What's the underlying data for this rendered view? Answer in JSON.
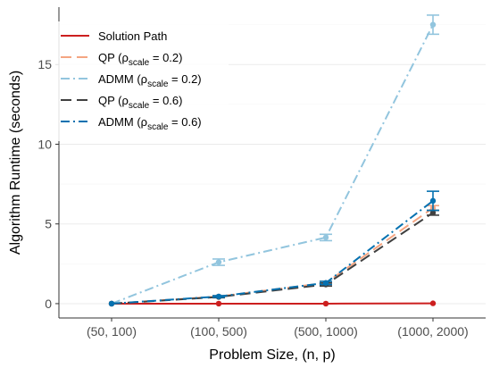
{
  "chart_data": {
    "type": "line",
    "title": "",
    "xlabel": "Problem Size, (n, p)",
    "ylabel": "Algorithm Runtime (seconds)",
    "categories": [
      "(50, 100)",
      "(100, 500)",
      "(500, 1000)",
      "(1000, 2000)"
    ],
    "ylim": [
      -0.9,
      18.6
    ],
    "yticks": [
      0,
      5,
      10,
      15
    ],
    "grid": "horizontal",
    "legend_position": "top-left",
    "series": [
      {
        "name": "Solution Path",
        "legend_prefix": "Solution Path",
        "legend_sub": "",
        "legend_suffix": "",
        "color": "#cc1f1f",
        "dash": "solid",
        "values": [
          0.0,
          0.0,
          0.0,
          0.02
        ],
        "error": [
          0,
          0,
          0,
          0
        ]
      },
      {
        "name": "QP (ρscale = 0.2)",
        "legend_prefix": "QP (ρ",
        "legend_sub": "scale",
        "legend_suffix": " = 0.2)",
        "color": "#f4a582",
        "dash": "longdash",
        "values": [
          0.0,
          0.45,
          1.3,
          6.0
        ],
        "error": [
          0,
          0.05,
          0.1,
          0.15
        ]
      },
      {
        "name": "ADMM (ρscale = 0.2)",
        "legend_prefix": "ADMM (ρ",
        "legend_sub": "scale",
        "legend_suffix": " = 0.2)",
        "color": "#92c5de",
        "dash": "dashdot",
        "values": [
          0.0,
          2.6,
          4.15,
          17.5
        ],
        "error": [
          0,
          0.2,
          0.2,
          0.6
        ]
      },
      {
        "name": "QP (ρscale = 0.6)",
        "legend_prefix": "QP (ρ",
        "legend_sub": "scale",
        "legend_suffix": " = 0.6)",
        "color": "#404040",
        "dash": "longdash",
        "values": [
          0.0,
          0.42,
          1.2,
          5.7
        ],
        "error": [
          0,
          0.05,
          0.1,
          0.15
        ]
      },
      {
        "name": "ADMM (ρscale = 0.6)",
        "legend_prefix": "ADMM (ρ",
        "legend_sub": "scale",
        "legend_suffix": " = 0.6)",
        "color": "#0571b0",
        "dash": "dashdot",
        "values": [
          0.0,
          0.45,
          1.3,
          6.45
        ],
        "error": [
          0,
          0.05,
          0.1,
          0.6
        ]
      }
    ]
  }
}
